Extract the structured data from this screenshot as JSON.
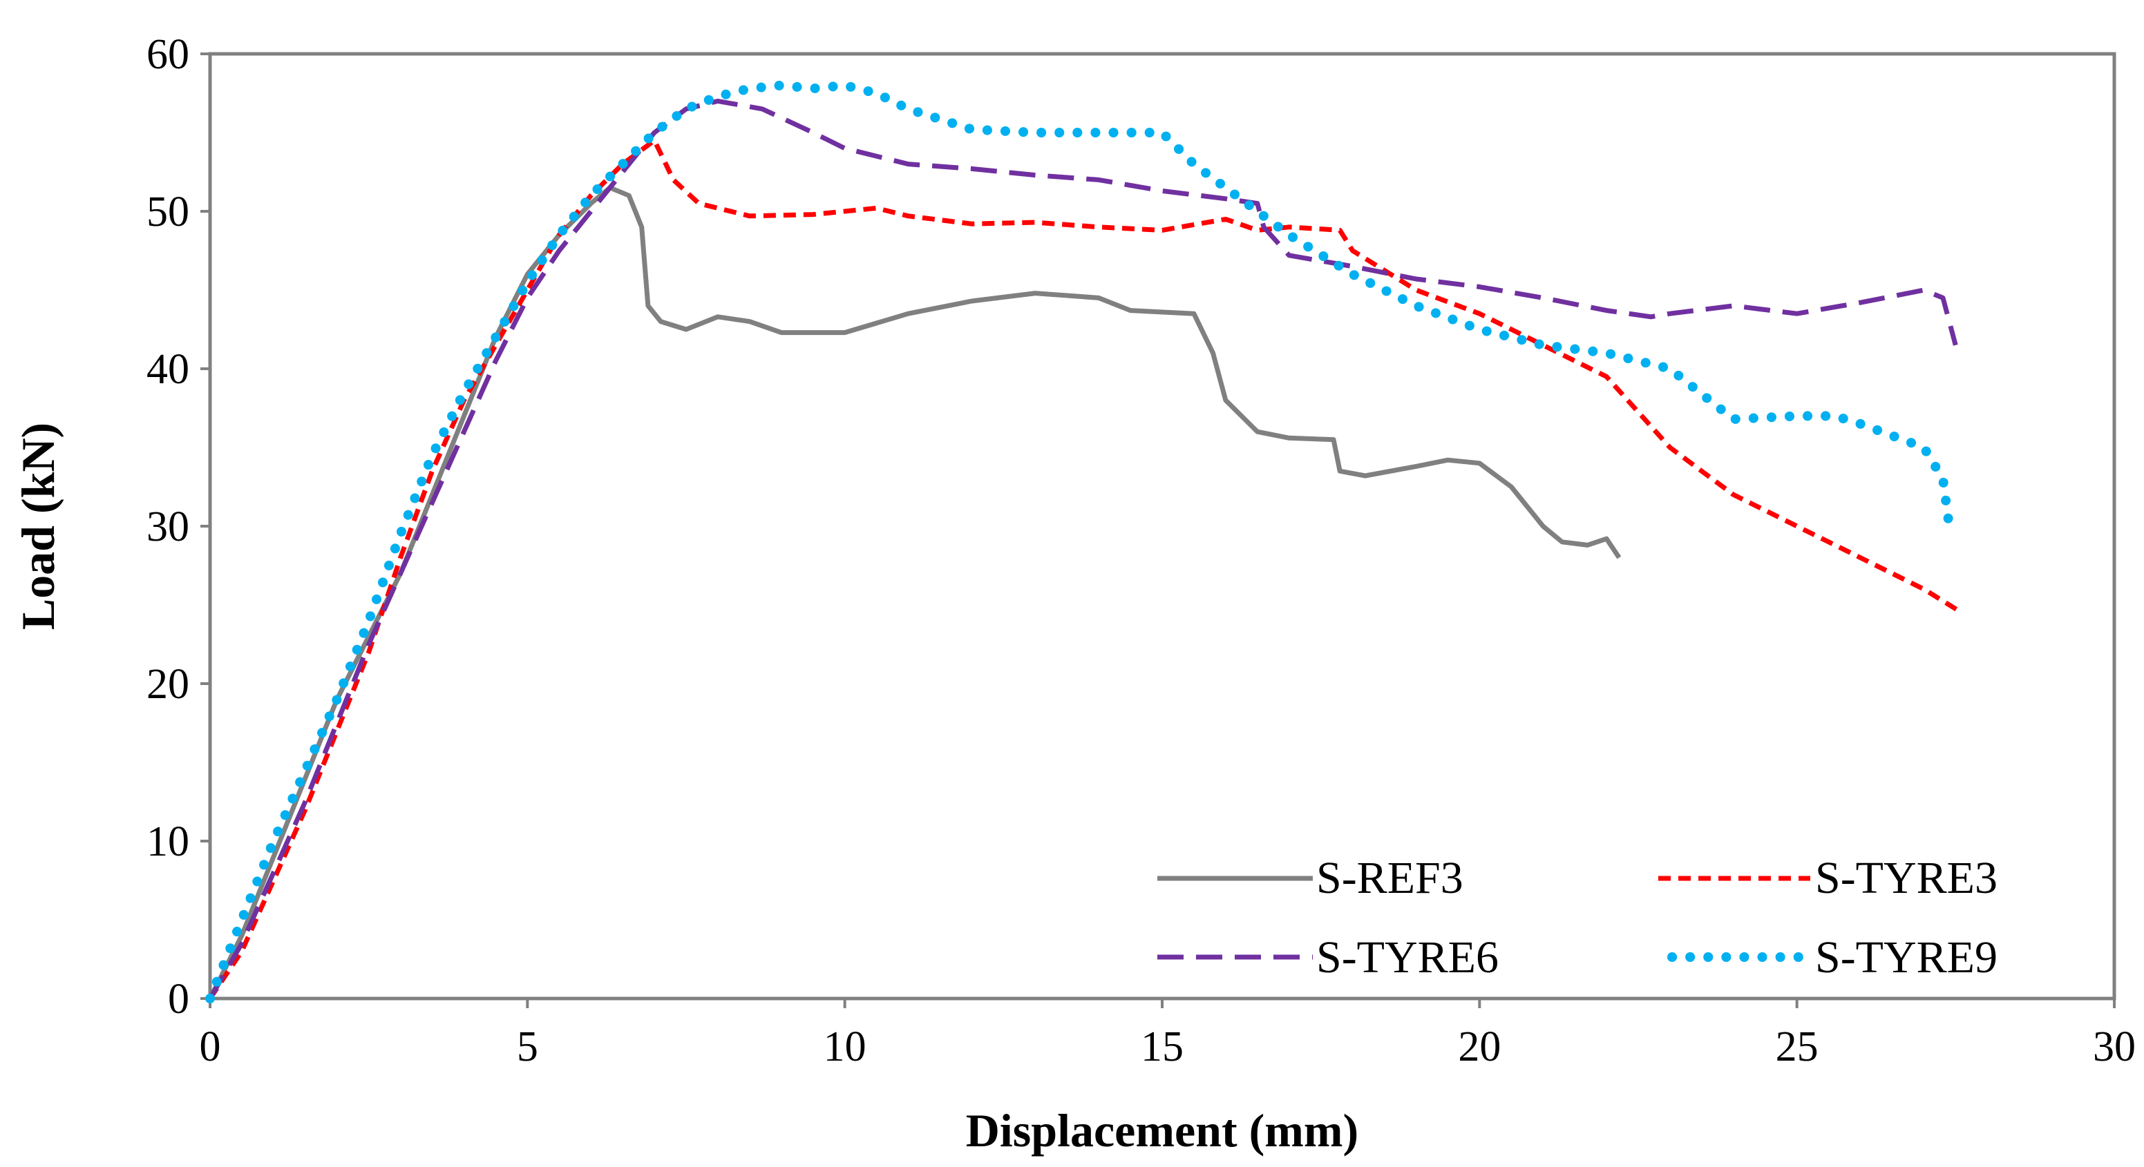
{
  "chart_data": {
    "type": "line",
    "title": "",
    "xlabel": "Displacement (mm)",
    "ylabel": "Load (kN)",
    "xlim": [
      0,
      30
    ],
    "ylim": [
      0,
      60
    ],
    "xticks": [
      0,
      5,
      10,
      15,
      20,
      25,
      30
    ],
    "yticks": [
      0,
      10,
      20,
      30,
      40,
      50,
      60
    ],
    "grid": false,
    "legend_position": "bottom-right",
    "series": [
      {
        "name": "S-REF3",
        "color": "#808080",
        "style": "solid",
        "points": [
          [
            0,
            0
          ],
          [
            0.5,
            4
          ],
          [
            1,
            9
          ],
          [
            1.5,
            14
          ],
          [
            2,
            19
          ],
          [
            2.5,
            23
          ],
          [
            3,
            27
          ],
          [
            3.5,
            32
          ],
          [
            4,
            37
          ],
          [
            4.5,
            42
          ],
          [
            5,
            46
          ],
          [
            5.5,
            48.5
          ],
          [
            6,
            50.5
          ],
          [
            6.3,
            51.5
          ],
          [
            6.6,
            51
          ],
          [
            6.8,
            49
          ],
          [
            6.9,
            44
          ],
          [
            7.1,
            43
          ],
          [
            7.5,
            42.5
          ],
          [
            8,
            43.3
          ],
          [
            8.5,
            43
          ],
          [
            9,
            42.3
          ],
          [
            10,
            42.3
          ],
          [
            11,
            43.5
          ],
          [
            12,
            44.3
          ],
          [
            13,
            44.8
          ],
          [
            14,
            44.5
          ],
          [
            14.5,
            43.7
          ],
          [
            15.5,
            43.5
          ],
          [
            15.8,
            41
          ],
          [
            16,
            38
          ],
          [
            16.5,
            36
          ],
          [
            17,
            35.6
          ],
          [
            17.7,
            35.5
          ],
          [
            17.8,
            33.5
          ],
          [
            18.2,
            33.2
          ],
          [
            19,
            33.8
          ],
          [
            19.5,
            34.2
          ],
          [
            20,
            34
          ],
          [
            20.5,
            32.5
          ],
          [
            21,
            30
          ],
          [
            21.3,
            29
          ],
          [
            21.7,
            28.8
          ],
          [
            22,
            29.2
          ],
          [
            22.2,
            28
          ]
        ]
      },
      {
        "name": "S-TYRE3",
        "color": "#ff0000",
        "style": "dashed",
        "points": [
          [
            0,
            0
          ],
          [
            0.5,
            3
          ],
          [
            1,
            7.5
          ],
          [
            1.5,
            12
          ],
          [
            2,
            17
          ],
          [
            2.5,
            22
          ],
          [
            3,
            28
          ],
          [
            3.5,
            33.5
          ],
          [
            4,
            38
          ],
          [
            4.5,
            41.5
          ],
          [
            5,
            45
          ],
          [
            5.5,
            48.5
          ],
          [
            6,
            51
          ],
          [
            6.5,
            53
          ],
          [
            7,
            54.5
          ],
          [
            7.3,
            52
          ],
          [
            7.7,
            50.5
          ],
          [
            8.5,
            49.7
          ],
          [
            9.5,
            49.8
          ],
          [
            10.5,
            50.2
          ],
          [
            11,
            49.7
          ],
          [
            12,
            49.2
          ],
          [
            13,
            49.3
          ],
          [
            14,
            49
          ],
          [
            15,
            48.8
          ],
          [
            16,
            49.5
          ],
          [
            16.5,
            48.8
          ],
          [
            17,
            49
          ],
          [
            17.8,
            48.8
          ],
          [
            18,
            47.5
          ],
          [
            19,
            45
          ],
          [
            20,
            43.5
          ],
          [
            21,
            41.5
          ],
          [
            22,
            39.5
          ],
          [
            23,
            35
          ],
          [
            24,
            32
          ],
          [
            25,
            30
          ],
          [
            26,
            28
          ],
          [
            27,
            26
          ],
          [
            27.6,
            24.5
          ]
        ]
      },
      {
        "name": "S-TYRE6",
        "color": "#7030a0",
        "style": "long-dashed",
        "points": [
          [
            0,
            0
          ],
          [
            0.5,
            3.5
          ],
          [
            1,
            8
          ],
          [
            1.5,
            12.5
          ],
          [
            2,
            17.5
          ],
          [
            2.5,
            22.5
          ],
          [
            3,
            27
          ],
          [
            3.5,
            31.5
          ],
          [
            4,
            36
          ],
          [
            4.5,
            40.5
          ],
          [
            5,
            44.5
          ],
          [
            5.5,
            47.5
          ],
          [
            6,
            50
          ],
          [
            6.5,
            52.5
          ],
          [
            7,
            55
          ],
          [
            7.5,
            56.5
          ],
          [
            8,
            57
          ],
          [
            8.7,
            56.5
          ],
          [
            9.5,
            55
          ],
          [
            10,
            54
          ],
          [
            11,
            53
          ],
          [
            12,
            52.7
          ],
          [
            13,
            52.3
          ],
          [
            14,
            52
          ],
          [
            15,
            51.3
          ],
          [
            16,
            50.8
          ],
          [
            16.5,
            50.5
          ],
          [
            16.6,
            49
          ],
          [
            17,
            47.2
          ],
          [
            18,
            46.5
          ],
          [
            19,
            45.7
          ],
          [
            20,
            45.2
          ],
          [
            21,
            44.5
          ],
          [
            22,
            43.7
          ],
          [
            22.7,
            43.3
          ],
          [
            23,
            43.5
          ],
          [
            24,
            44
          ],
          [
            25,
            43.5
          ],
          [
            26,
            44.2
          ],
          [
            27,
            45
          ],
          [
            27.3,
            44.5
          ],
          [
            27.5,
            41.5
          ]
        ]
      },
      {
        "name": "S-TYRE9",
        "color": "#00b0f0",
        "style": "dotted",
        "points": [
          [
            0,
            0
          ],
          [
            0.5,
            5
          ],
          [
            1,
            10
          ],
          [
            1.5,
            14.5
          ],
          [
            2,
            19
          ],
          [
            2.5,
            24
          ],
          [
            3,
            29.5
          ],
          [
            3.5,
            34.5
          ],
          [
            4,
            38.5
          ],
          [
            4.5,
            42
          ],
          [
            5,
            45.5
          ],
          [
            5.5,
            48.5
          ],
          [
            6,
            51
          ],
          [
            6.5,
            53
          ],
          [
            7,
            55
          ],
          [
            7.5,
            56.5
          ],
          [
            8,
            57.3
          ],
          [
            8.5,
            57.8
          ],
          [
            9,
            58
          ],
          [
            9.5,
            57.8
          ],
          [
            10,
            58
          ],
          [
            10.5,
            57.5
          ],
          [
            11,
            56.5
          ],
          [
            12,
            55.2
          ],
          [
            13,
            55
          ],
          [
            14,
            55
          ],
          [
            15,
            55
          ],
          [
            15.5,
            53
          ],
          [
            16,
            51.5
          ],
          [
            16.5,
            50
          ],
          [
            17,
            48.5
          ],
          [
            18,
            46
          ],
          [
            19,
            44
          ],
          [
            20,
            42.5
          ],
          [
            21,
            41.5
          ],
          [
            22,
            41
          ],
          [
            23,
            40
          ],
          [
            24,
            36.8
          ],
          [
            25,
            37
          ],
          [
            25.6,
            37
          ],
          [
            26,
            36.5
          ],
          [
            27,
            35
          ],
          [
            27.3,
            33
          ],
          [
            27.4,
            30
          ]
        ]
      }
    ]
  }
}
